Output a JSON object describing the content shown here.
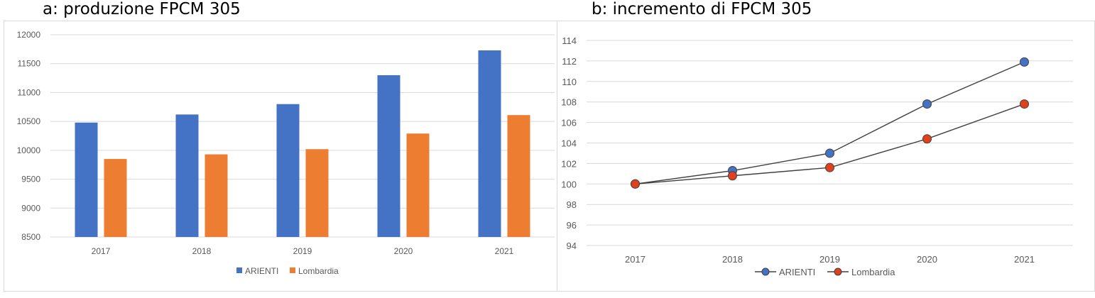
{
  "titles": {
    "a": "a: produzione FPCM 305",
    "b": "b: incremento di FPCM 305"
  },
  "colors": {
    "arienti": "#4472c4",
    "lombardia": "#ed7d31",
    "lombardia_marker": "#e0401c",
    "line": "#404040",
    "grid": "#d9d9d9",
    "axis_text": "#595959"
  },
  "chart_data": [
    {
      "type": "bar",
      "title": "a: produzione FPCM 305",
      "categories": [
        "2017",
        "2018",
        "2019",
        "2020",
        "2021"
      ],
      "series": [
        {
          "name": "ARIENTI",
          "values": [
            10480,
            10620,
            10800,
            11300,
            11730
          ]
        },
        {
          "name": "Lombardia",
          "values": [
            9850,
            9930,
            10020,
            10290,
            10610
          ]
        }
      ],
      "ylim": [
        8500,
        12000
      ],
      "yticks": [
        "8500",
        "9000",
        "9500",
        "10000",
        "10500",
        "11000",
        "11500",
        "12000"
      ],
      "grid": true,
      "legend": "bottom"
    },
    {
      "type": "line",
      "title": "b: incremento di FPCM 305",
      "categories": [
        "2017",
        "2018",
        "2019",
        "2020",
        "2021"
      ],
      "series": [
        {
          "name": "ARIENTI",
          "values": [
            100,
            101.3,
            103.0,
            107.8,
            111.9
          ]
        },
        {
          "name": "Lombardia",
          "values": [
            100,
            100.8,
            101.6,
            104.4,
            107.8
          ]
        }
      ],
      "ylim": [
        94,
        114
      ],
      "yticks": [
        "94",
        "96",
        "98",
        "100",
        "102",
        "104",
        "106",
        "108",
        "110",
        "112",
        "114"
      ],
      "grid": true,
      "legend": "bottom"
    }
  ]
}
